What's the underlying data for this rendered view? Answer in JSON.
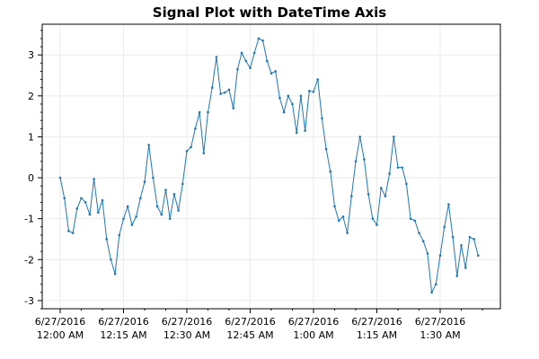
{
  "chart_data": {
    "type": "line",
    "title": "Signal Plot with DateTime Axis",
    "xlabel": "",
    "ylabel": "",
    "x_start": "6/27/2016 12:00 AM",
    "x_step_minutes": 1,
    "ylim": [
      -3.2,
      3.75
    ],
    "grid": true,
    "legend": "none",
    "series_color": "#1f77b4",
    "x_ticks": [
      {
        "minute": 0,
        "date": "6/27/2016",
        "time": "12:00 AM"
      },
      {
        "minute": 15,
        "date": "6/27/2016",
        "time": "12:15 AM"
      },
      {
        "minute": 30,
        "date": "6/27/2016",
        "time": "12:30 AM"
      },
      {
        "minute": 45,
        "date": "6/27/2016",
        "time": "12:45 AM"
      },
      {
        "minute": 60,
        "date": "6/27/2016",
        "time": "1:00 AM"
      },
      {
        "minute": 75,
        "date": "6/27/2016",
        "time": "1:15 AM"
      },
      {
        "minute": 90,
        "date": "6/27/2016",
        "time": "1:30 AM"
      }
    ],
    "y_ticks": [
      "-3",
      "-2",
      "-1",
      "0",
      "1",
      "2",
      "3"
    ],
    "series": [
      {
        "values": [
          0,
          -0.5,
          -1.3,
          -1.35,
          -0.75,
          -0.5,
          -0.6,
          -0.9,
          -0.03,
          -0.85,
          -0.55,
          -1.5,
          -2.0,
          -2.35,
          -1.4,
          -1.0,
          -0.7,
          -1.15,
          -0.95,
          -0.5,
          -0.1,
          0.8,
          0.0,
          -0.7,
          -0.9,
          -0.3,
          -1.0,
          -0.4,
          -0.8,
          -0.15,
          0.65,
          0.75,
          1.2,
          1.6,
          0.6,
          1.6,
          2.2,
          2.95,
          2.05,
          2.08,
          2.15,
          1.7,
          2.65,
          3.05,
          2.85,
          2.68,
          3.05,
          3.4,
          3.35,
          2.85,
          2.55,
          2.6,
          1.95,
          1.6,
          2.0,
          1.8,
          1.1,
          2.0,
          1.15,
          2.12,
          2.1,
          2.4,
          1.45,
          0.7,
          0.15,
          -0.7,
          -1.05,
          -0.95,
          -1.35,
          -0.45,
          0.4,
          1.0,
          0.45,
          -0.4,
          -1.0,
          -1.15,
          -0.25,
          -0.45,
          0.1,
          1.0,
          0.25,
          0.25,
          -0.15,
          -1.0,
          -1.05,
          -1.35,
          -1.55,
          -1.85,
          -2.8,
          -2.6,
          -1.9,
          -1.2,
          -0.65,
          -1.45,
          -2.4,
          -1.65,
          -2.2,
          -1.45,
          -1.5,
          -1.9
        ]
      }
    ]
  }
}
